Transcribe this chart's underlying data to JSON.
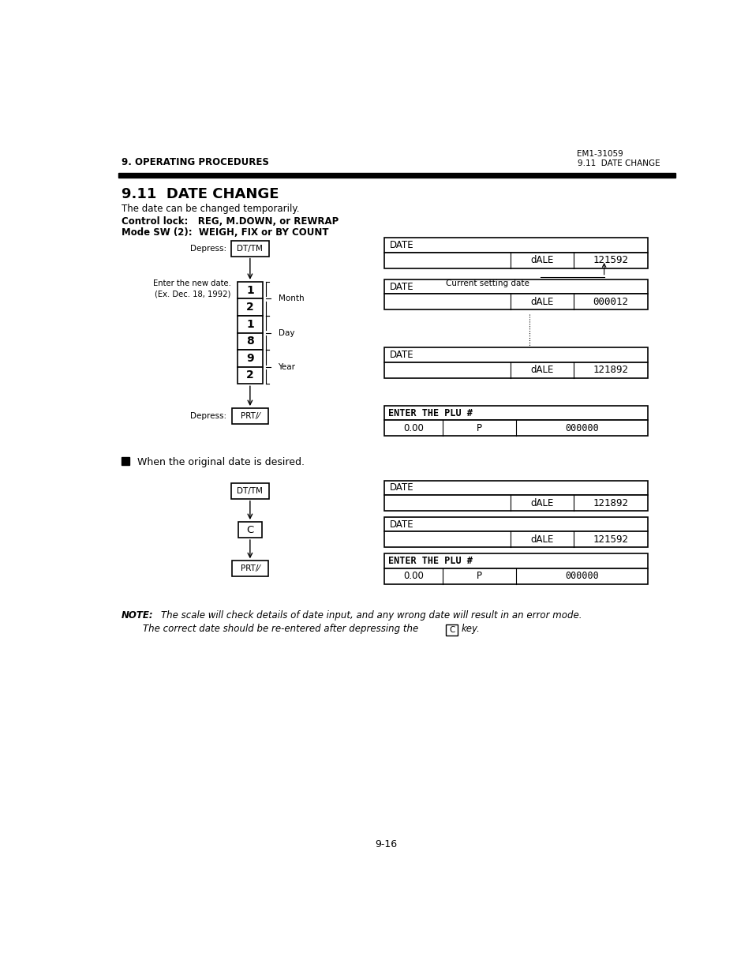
{
  "page_width": 9.54,
  "page_height": 12.35,
  "bg_color": "#ffffff",
  "header_em": "EM1-31059",
  "header_left": "9. OPERATING PROCEDURES",
  "header_right": "9.11  DATE CHANGE",
  "section_title": "9.11  DATE CHANGE",
  "intro1": "The date can be changed temporarily.",
  "intro2a": "Control lock:   REG, M.DOWN, or REWRAP",
  "intro2b": "Mode SW (2):  WEIGH, FIX or BY COUNT",
  "num_boxes": [
    "1",
    "2",
    "1",
    "8",
    "9",
    "2"
  ],
  "month_label": "Month",
  "day_label": "Day",
  "year_label": "Year",
  "section2_bullet": "When the original date is desired.",
  "page_num": "9-16"
}
